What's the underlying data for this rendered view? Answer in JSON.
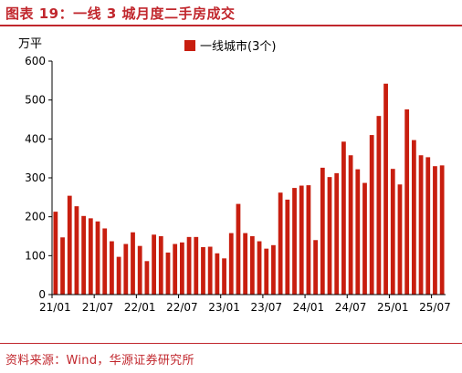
{
  "title": "图表 19：一线 3 城月度二手房成交",
  "unit_label": "万平",
  "source": "资料来源：Wind，华源证券研究所",
  "colors": {
    "accent": "#c1272d",
    "bar": "#c81e0f",
    "axis": "#000000"
  },
  "chart_data": {
    "type": "bar",
    "ylim": [
      0,
      600
    ],
    "yticks": [
      0,
      100,
      200,
      300,
      400,
      500,
      600
    ],
    "x_tick_labels": [
      "21/01",
      "21/07",
      "22/01",
      "22/07",
      "23/01",
      "23/07",
      "24/01",
      "24/07",
      "25/01",
      "25/07"
    ],
    "x_tick_every": 6,
    "grid": false,
    "legend_position": "top-center",
    "categories": [
      "21/01",
      "21/02",
      "21/03",
      "21/04",
      "21/05",
      "21/06",
      "21/07",
      "21/08",
      "21/09",
      "21/10",
      "21/11",
      "21/12",
      "22/01",
      "22/02",
      "22/03",
      "22/04",
      "22/05",
      "22/06",
      "22/07",
      "22/08",
      "22/09",
      "22/10",
      "22/11",
      "22/12",
      "23/01",
      "23/02",
      "23/03",
      "23/04",
      "23/05",
      "23/06",
      "23/07",
      "23/08",
      "23/09",
      "23/10",
      "23/11",
      "23/12",
      "24/01",
      "24/02",
      "24/03",
      "24/04",
      "24/05",
      "24/06",
      "24/07",
      "24/08",
      "24/09",
      "24/10",
      "24/11",
      "24/12",
      "25/01",
      "25/02",
      "25/03",
      "25/04",
      "25/05",
      "25/06",
      "25/07",
      "25/08"
    ],
    "series": [
      {
        "name": "一线城市(3个)",
        "values": [
          213,
          147,
          254,
          227,
          202,
          196,
          188,
          170,
          137,
          97,
          130,
          160,
          125,
          86,
          154,
          150,
          108,
          130,
          134,
          148,
          148,
          122,
          123,
          106,
          93,
          158,
          233,
          158,
          150,
          137,
          118,
          127,
          262,
          244,
          274,
          280,
          281,
          140,
          326,
          302,
          312,
          393,
          358,
          322,
          287,
          410,
          459,
          542,
          323,
          283,
          476,
          397,
          358,
          353,
          330,
          332
        ]
      }
    ]
  }
}
